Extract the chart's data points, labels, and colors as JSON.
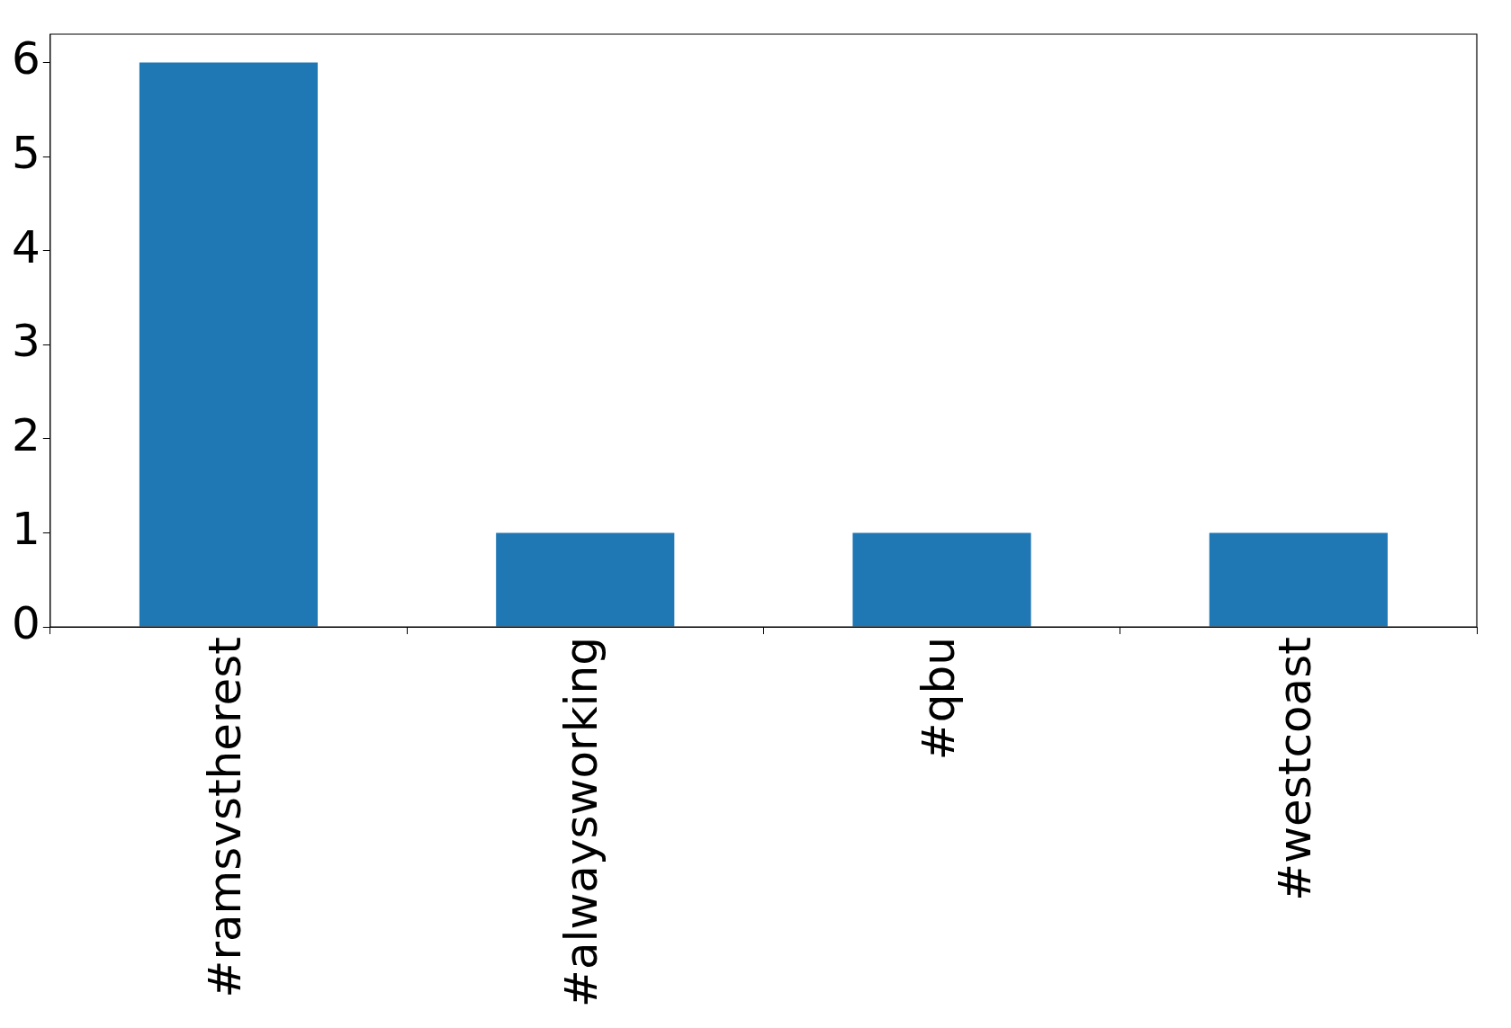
{
  "chart_data": {
    "type": "bar",
    "categories": [
      "#ramsvstherest",
      "#alwaysworking",
      "#qbu",
      "#westcoast"
    ],
    "values": [
      6,
      1,
      1,
      1
    ],
    "color": "#1f77b4",
    "ylim": [
      0,
      6.3
    ],
    "yticks": [
      0,
      1,
      2,
      3,
      4,
      5,
      6
    ],
    "grid": false,
    "legend": false
  }
}
